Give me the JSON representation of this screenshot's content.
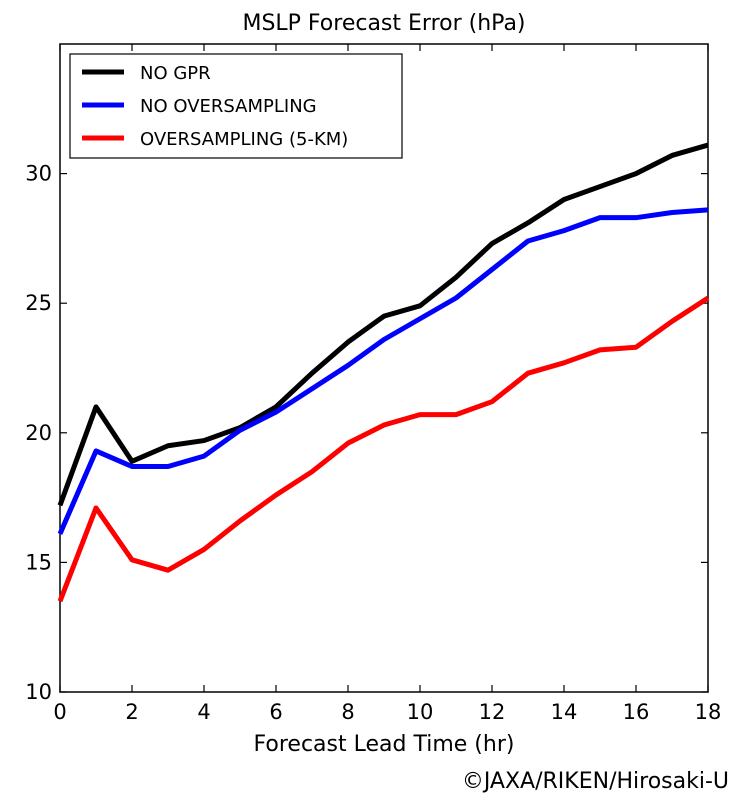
{
  "chart_data": {
    "type": "line",
    "title": "MSLP Forecast Error (hPa)",
    "xlabel": "Forecast Lead Time (hr)",
    "ylabel": "",
    "xlim": [
      0,
      18
    ],
    "ylim": [
      10,
      35
    ],
    "xticks": [
      0,
      2,
      4,
      6,
      8,
      10,
      12,
      14,
      16,
      18
    ],
    "yticks": [
      10,
      15,
      20,
      25,
      30
    ],
    "grid": false,
    "legend_position": "top-left",
    "x": [
      0,
      1,
      2,
      3,
      4,
      5,
      6,
      7,
      8,
      9,
      10,
      11,
      12,
      13,
      14,
      15,
      16,
      17,
      18
    ],
    "series": [
      {
        "name": "NO GPR",
        "color": "#000000",
        "values": [
          17.2,
          21.0,
          18.9,
          19.5,
          19.7,
          20.2,
          21.0,
          22.3,
          23.5,
          24.5,
          24.9,
          26.0,
          27.3,
          28.1,
          29.0,
          29.5,
          30.0,
          30.7,
          31.1
        ]
      },
      {
        "name": "NO OVERSAMPLING",
        "color": "#0000ff",
        "values": [
          16.1,
          19.3,
          18.7,
          18.7,
          19.1,
          20.1,
          20.8,
          21.7,
          22.6,
          23.6,
          24.4,
          25.2,
          26.3,
          27.4,
          27.8,
          28.3,
          28.3,
          28.5,
          28.6
        ]
      },
      {
        "name": "OVERSAMPLING (5-KM)",
        "color": "#ff0000",
        "values": [
          13.5,
          17.1,
          15.1,
          14.7,
          15.5,
          16.6,
          17.6,
          18.5,
          19.6,
          20.3,
          20.7,
          20.7,
          21.2,
          22.3,
          22.7,
          23.2,
          23.3,
          24.3,
          25.2
        ]
      }
    ]
  },
  "credit": "©JAXA/RIKEN/Hirosaki-U"
}
